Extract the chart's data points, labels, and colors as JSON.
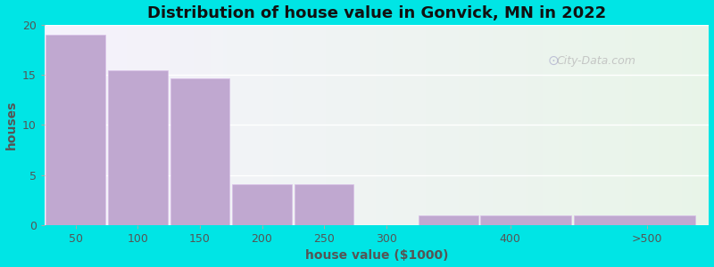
{
  "title": "Distribution of house value in Gonvick, MN in 2022",
  "xlabel": "house value ($1000)",
  "ylabel": "houses",
  "bar_left_edges": [
    25,
    75,
    125,
    175,
    225,
    325,
    375,
    450
  ],
  "bar_widths": [
    50,
    50,
    50,
    50,
    50,
    50,
    75,
    100
  ],
  "bar_values": [
    19,
    15.5,
    14.7,
    4.1,
    4.1,
    1,
    1,
    1
  ],
  "bar_color": "#c0a8d0",
  "bar_edge_color": "#d8c0e8",
  "ylim": [
    0,
    20
  ],
  "xlim": [
    25,
    560
  ],
  "yticks": [
    0,
    5,
    10,
    15,
    20
  ],
  "xtick_positions": [
    50,
    100,
    150,
    200,
    250,
    300,
    400
  ],
  "xtick_labels": [
    "50",
    "100",
    "150",
    "200",
    "250",
    "300",
    "400"
  ],
  "xtick_extra_pos": 510,
  "xtick_extra_label": ">500",
  "background_outer": "#00e5e5",
  "bg_left_color": "#f5f2fc",
  "bg_right_color": "#e8f4e8",
  "bg_split_x": 280,
  "grid_color": "#ffffff",
  "title_fontsize": 13,
  "axis_label_fontsize": 10,
  "tick_fontsize": 9,
  "watermark_text": "City-Data.com"
}
